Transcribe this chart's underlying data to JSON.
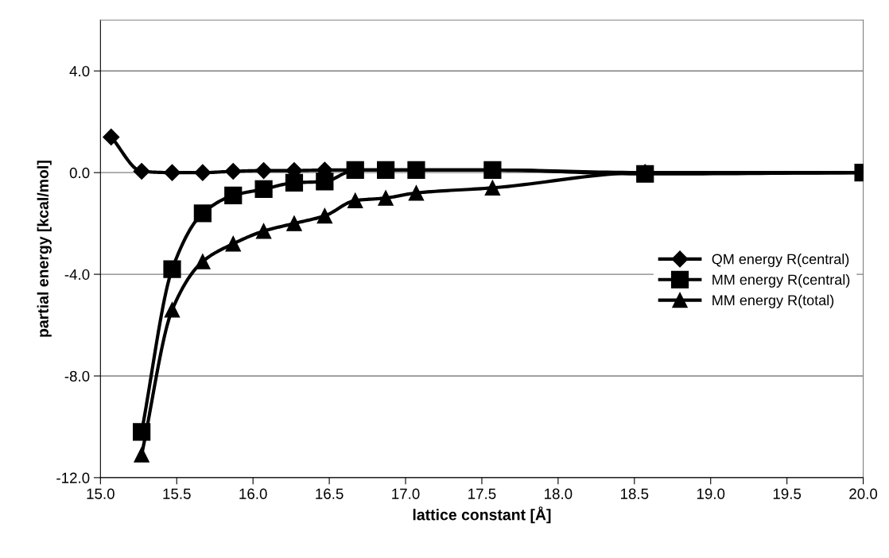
{
  "chart_data": {
    "type": "line",
    "xlabel": "lattice constant [Å]",
    "ylabel": "partial energy [kcal/mol]",
    "x": [
      15.07,
      15.27,
      15.47,
      15.67,
      15.87,
      16.07,
      16.27,
      16.47,
      16.67,
      16.87,
      17.07,
      17.57,
      18.57,
      20.0
    ],
    "series": [
      {
        "name": "QM energy R(central)",
        "color": "#000000",
        "marker": "diamond",
        "values": [
          1.4,
          0.05,
          0.0,
          0.0,
          0.05,
          0.08,
          0.08,
          0.1,
          0.1,
          0.1,
          0.1,
          0.1,
          0.0,
          0.0
        ]
      },
      {
        "name": "MM energy R(central)",
        "color": "#000000",
        "marker": "square",
        "values": [
          null,
          -10.2,
          -3.8,
          -1.6,
          -0.9,
          -0.65,
          -0.4,
          -0.35,
          0.1,
          0.1,
          0.1,
          0.1,
          -0.05,
          0.0
        ]
      },
      {
        "name": "MM energy R(total)",
        "color": "#000000",
        "marker": "triangle",
        "values": [
          null,
          -11.1,
          -5.4,
          -3.5,
          -2.8,
          -2.3,
          -2.0,
          -1.7,
          -1.1,
          -1.0,
          -0.8,
          -0.6,
          0.0,
          0.0
        ]
      }
    ],
    "xlim": [
      15.0,
      20.0
    ],
    "ylim": [
      -12.0,
      6.0
    ],
    "xticks": [
      {
        "value": 15.0,
        "label": "15.0"
      },
      {
        "value": 15.5,
        "label": "15.5"
      },
      {
        "value": 16.0,
        "label": "16.0"
      },
      {
        "value": 16.5,
        "label": "16.5"
      },
      {
        "value": 17.0,
        "label": "17.0"
      },
      {
        "value": 17.5,
        "label": "17.5"
      },
      {
        "value": 18.0,
        "label": "18.0"
      },
      {
        "value": 18.5,
        "label": "18.5"
      },
      {
        "value": 19.0,
        "label": "19.0"
      },
      {
        "value": 19.5,
        "label": "19.5"
      },
      {
        "value": 20.0,
        "label": "20.0"
      }
    ],
    "yticks": [
      {
        "value": -12.0,
        "label": "-12.0"
      },
      {
        "value": -8.0,
        "label": "-8.0"
      },
      {
        "value": -4.0,
        "label": "-4.0"
      },
      {
        "value": 0.0,
        "label": "0.0"
      },
      {
        "value": 4.0,
        "label": "4.0"
      }
    ],
    "grid": "y",
    "legend": "center right",
    "line_style": "solid"
  }
}
